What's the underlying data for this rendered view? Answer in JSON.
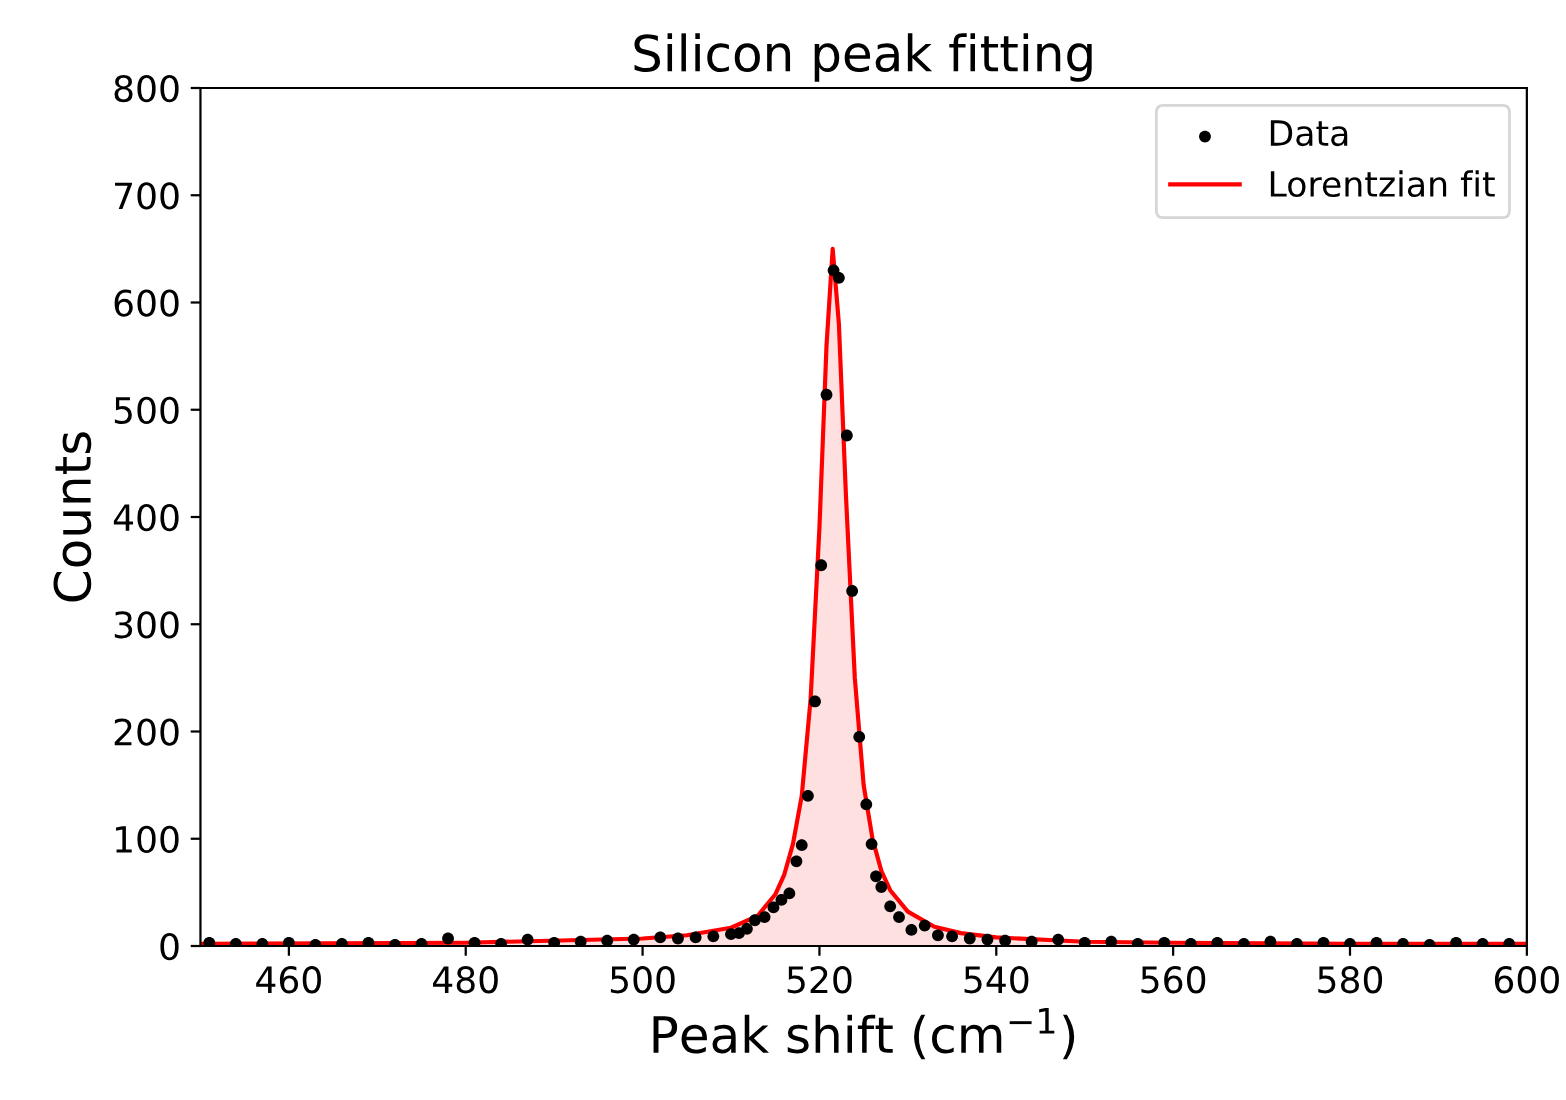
{
  "chart_data": {
    "type": "scatter",
    "title": "Silicon peak fitting",
    "xlabel": "Peak shift (cm$^{−1}$)",
    "ylabel": "Counts",
    "xlim": [
      450,
      600
    ],
    "ylim": [
      0,
      800
    ],
    "xticks": [
      460,
      480,
      500,
      520,
      540,
      560,
      580,
      600
    ],
    "yticks": [
      0,
      100,
      200,
      300,
      400,
      500,
      600,
      700,
      800
    ],
    "grid": false,
    "legend": "top right",
    "series": [
      {
        "name": "Data",
        "type": "scatter",
        "color": "#000000",
        "marker": "circle",
        "x": [
          451,
          454,
          457,
          460,
          463,
          466,
          469,
          472,
          475,
          478,
          481,
          484,
          487,
          490,
          493,
          496,
          499,
          502,
          504,
          506,
          508,
          510,
          510.9,
          511.8,
          512.7,
          513.8,
          514.8,
          515.7,
          516.6,
          517.4,
          518.0,
          518.7,
          519.5,
          520.2,
          520.8,
          521.6,
          522.2,
          523.1,
          523.7,
          524.5,
          525.3,
          525.9,
          526.4,
          527.0,
          528.0,
          529.0,
          530.4,
          531.9,
          533.4,
          535,
          537,
          539,
          541,
          544,
          547,
          550,
          553,
          556,
          559,
          562,
          565,
          568,
          571,
          574,
          577,
          580,
          583,
          586,
          589,
          592,
          595,
          598
        ],
        "values": [
          3,
          2,
          2,
          3,
          1,
          2,
          3,
          1,
          2,
          7,
          3,
          2,
          6,
          3,
          4,
          5,
          6,
          8,
          7,
          8,
          9,
          11,
          12,
          16,
          24,
          27,
          36,
          43,
          49,
          79,
          94,
          140,
          228,
          355,
          514,
          630,
          623,
          476,
          331,
          195,
          132,
          95,
          65,
          55,
          37,
          27,
          15,
          19,
          10,
          9,
          7,
          6,
          5,
          4,
          6,
          3,
          4,
          2,
          3,
          2,
          3,
          2,
          4,
          2,
          3,
          2,
          3,
          2,
          1,
          3,
          2,
          2
        ]
      },
      {
        "name": "Lorentzian fit",
        "type": "area",
        "color": "#ff0000",
        "line_style": "solid",
        "x": [
          450,
          480,
          500,
          505,
          510,
          513,
          515,
          516,
          517,
          518,
          519,
          520,
          520.8,
          521.5,
          522.2,
          523,
          524,
          525,
          526,
          527,
          528,
          530,
          533,
          536,
          540,
          550,
          560,
          580,
          600
        ],
        "values": [
          2,
          3,
          7,
          10,
          17,
          28,
          48,
          66,
          95,
          140,
          230,
          390,
          560,
          650,
          580,
          420,
          250,
          150,
          100,
          70,
          52,
          32,
          18,
          12,
          8,
          4,
          3,
          2,
          2
        ]
      }
    ]
  }
}
